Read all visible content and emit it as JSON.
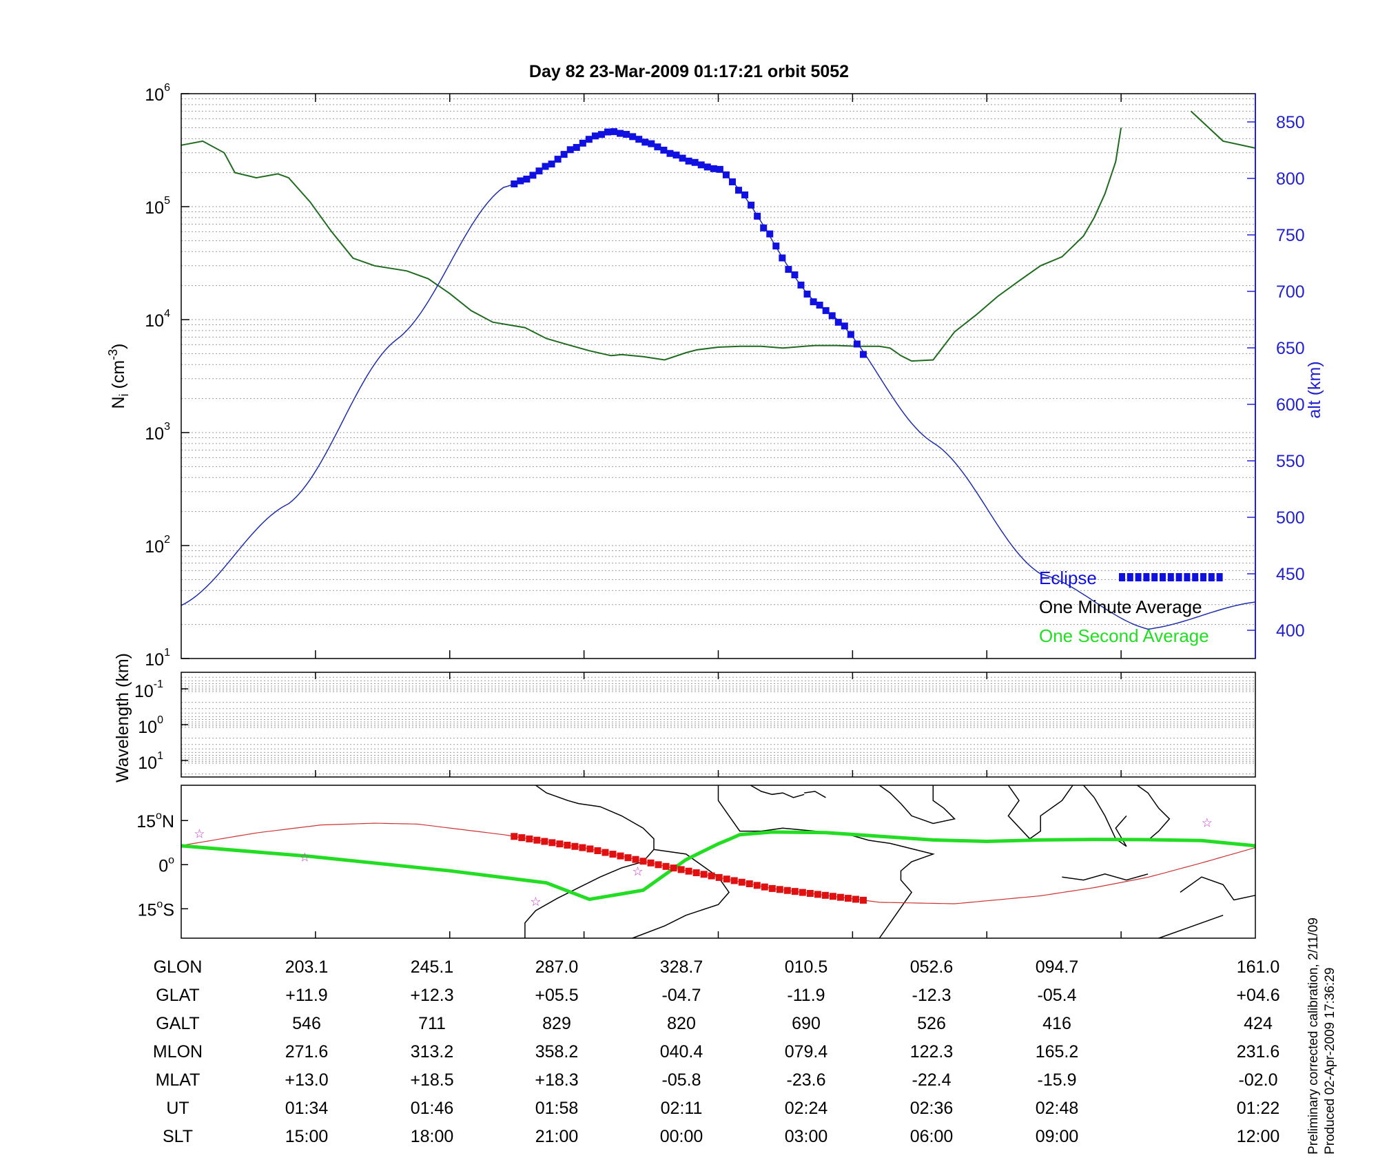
{
  "title": "Day 82  23-Mar-2009 01:17:21   orbit 5052",
  "colors": {
    "axis": "#000000",
    "alt_axis": "#2222cc",
    "density_line": "#1e6b1e",
    "altitude_line": "#1f2fa8",
    "eclipse": "#1010e0",
    "eclipse_map": "#e01010",
    "track": "#22dd22",
    "orbit_line": "#cc3333",
    "star": "#cc33cc",
    "grid": "#9a9a9a"
  },
  "footer": {
    "line1": "Preliminary corrected calibration, 2/11/09",
    "line2": "Produced 02-Apr-2009 17:36:29"
  },
  "chart_data": [
    {
      "type": "line",
      "panel": "density",
      "y_scale": "log",
      "ylim": [
        10,
        1000000
      ],
      "yticks": [
        {
          "value": 1,
          "base": "10",
          "exp": "1"
        },
        {
          "value": 2,
          "base": "10",
          "exp": "2"
        },
        {
          "value": 3,
          "base": "10",
          "exp": "3"
        },
        {
          "value": 4,
          "base": "10",
          "exp": "4"
        },
        {
          "value": 5,
          "base": "10",
          "exp": "5"
        },
        {
          "value": 6,
          "base": "10",
          "exp": "6"
        }
      ],
      "ylabel": {
        "main": "N",
        "sub": "i",
        "unit_pre": " (cm",
        "unit_sup": "-3",
        "unit_post": ")"
      },
      "y2label": "alt (km)",
      "y2lim": [
        375,
        875
      ],
      "y2ticks": [
        "400",
        "450",
        "500",
        "550",
        "600",
        "650",
        "700",
        "750",
        "800",
        "850"
      ],
      "grid": true,
      "x_fraction": [
        0,
        0.02,
        0.04,
        0.05,
        0.07,
        0.09,
        0.1,
        0.12,
        0.14,
        0.16,
        0.18,
        0.21,
        0.23,
        0.25,
        0.27,
        0.29,
        0.32,
        0.34,
        0.36,
        0.38,
        0.4,
        0.41,
        0.43,
        0.45,
        0.47,
        0.48,
        0.5,
        0.52,
        0.54,
        0.56,
        0.58,
        0.59,
        0.61,
        0.63,
        0.65,
        0.66,
        0.67,
        0.68,
        0.7,
        0.72,
        0.74,
        0.76,
        0.78,
        0.8,
        0.82,
        0.84,
        0.85,
        0.86,
        0.87,
        0.875,
        0.94,
        0.97,
        1
      ],
      "series": [
        {
          "key": "density",
          "values": [
            350000,
            380000,
            300000,
            200000,
            180000,
            195000,
            180000,
            110000,
            60000,
            35000,
            30000,
            27000,
            23000,
            17000,
            12000,
            9500,
            8500,
            6800,
            6000,
            5300,
            4800,
            4900,
            4700,
            4400,
            5100,
            5400,
            5700,
            5800,
            5800,
            5600,
            5800,
            5900,
            5900,
            5800,
            5800,
            5600,
            4800,
            4300,
            4400,
            7800,
            11000,
            16000,
            22000,
            30000,
            36000,
            55000,
            80000,
            130000,
            250000,
            500000,
            700000,
            380000,
            330000
          ],
          "gap_after_index": 49
        },
        {
          "key": "altitude",
          "x_fraction": [
            0,
            0.1,
            0.2,
            0.3,
            0.4,
            0.5,
            0.6,
            0.7,
            0.8,
            0.9,
            1
          ],
          "values": [
            422,
            512,
            657,
            792,
            842,
            808,
            683,
            566,
            450,
            401,
            425
          ]
        }
      ],
      "eclipse_range": [
        0.31,
        0.635
      ],
      "legend": [
        {
          "label": "Eclipse",
          "style": "eclipse"
        },
        {
          "label": "One Minute Average",
          "style": "black"
        },
        {
          "label": "One Second Average",
          "style": "green"
        }
      ],
      "legend_position": "bottom-right"
    },
    {
      "type": "heatmap",
      "panel": "wavelength",
      "ylabel": "Wavelength (km)",
      "yticks": [
        {
          "base": "10",
          "exp": "-1"
        },
        {
          "base": "10",
          "exp": "0"
        },
        {
          "base": "10",
          "exp": "1"
        }
      ],
      "grid": true
    },
    {
      "type": "map",
      "panel": "ground_track",
      "yticks": [
        {
          "deg": "15",
          "hemi": "N"
        },
        {
          "deg": "0",
          "hemi": ""
        },
        {
          "deg": "15",
          "hemi": "S"
        }
      ],
      "ylim": [
        -25,
        27
      ],
      "orbit_track": {
        "x_fraction": [
          0,
          0.07,
          0.13,
          0.18,
          0.22,
          0.3,
          0.38,
          0.45,
          0.55,
          0.65,
          0.72,
          0.8,
          0.85,
          0.9,
          0.95,
          1
        ],
        "lat": [
          6.5,
          10.8,
          13.5,
          14.1,
          13.8,
          10.2,
          5.4,
          -0.5,
          -8.1,
          -12.8,
          -13.3,
          -10.6,
          -7.8,
          -4.3,
          0.6,
          5.8
        ]
      },
      "satellite_track": {
        "x_fraction": [
          0,
          0.12,
          0.25,
          0.34,
          0.38,
          0.43,
          0.47,
          0.5,
          0.51,
          0.52,
          0.55,
          0.6,
          0.7,
          0.75,
          0.8,
          0.85,
          0.9,
          0.95,
          1
        ],
        "lat": [
          6.4,
          2.8,
          -2.1,
          -6.2,
          -11.8,
          -8.7,
          1.7,
          7.1,
          8.6,
          10.2,
          11.1,
          10.9,
          8.4,
          7.9,
          8.4,
          8.6,
          8.5,
          8.2,
          6.4
        ]
      },
      "eclipse_segment": {
        "x_fraction": [
          0.31,
          0.635
        ],
        "lat": [
          8.9,
          -13.2
        ]
      },
      "stars": [
        {
          "x_fraction": 0.017,
          "lat": 10.7
        },
        {
          "x_fraction": 0.115,
          "lat": 2.7
        },
        {
          "x_fraction": 0.33,
          "lat": -12.3
        },
        {
          "x_fraction": 0.425,
          "lat": -2.1
        },
        {
          "x_fraction": 0.955,
          "lat": 14.5
        }
      ]
    }
  ],
  "table": {
    "rows": [
      {
        "label": "GLON",
        "values": [
          "203.1",
          "245.1",
          "287.0",
          "328.7",
          "010.5",
          "052.6",
          "094.7",
          "161.0"
        ]
      },
      {
        "label": "GLAT",
        "values": [
          "+11.9",
          "+12.3",
          "+05.5",
          "-04.7",
          "-11.9",
          "-12.3",
          "-05.4",
          "+04.6"
        ]
      },
      {
        "label": "GALT",
        "values": [
          "546",
          "711",
          "829",
          "820",
          "690",
          "526",
          "416",
          "424"
        ]
      },
      {
        "label": "MLON",
        "values": [
          "271.6",
          "313.2",
          "358.2",
          "040.4",
          "079.4",
          "122.3",
          "165.2",
          "231.6"
        ]
      },
      {
        "label": "MLAT",
        "values": [
          "+13.0",
          "+18.5",
          "+18.3",
          "-05.8",
          "-23.6",
          "-22.4",
          "-15.9",
          "-02.0"
        ]
      },
      {
        "label": "UT",
        "values": [
          "01:34",
          "01:46",
          "01:58",
          "02:11",
          "02:24",
          "02:36",
          "02:48",
          "01:22"
        ]
      },
      {
        "label": "SLT",
        "values": [
          "15:00",
          "18:00",
          "21:00",
          "00:00",
          "03:00",
          "06:00",
          "09:00",
          "12:00"
        ]
      }
    ]
  }
}
